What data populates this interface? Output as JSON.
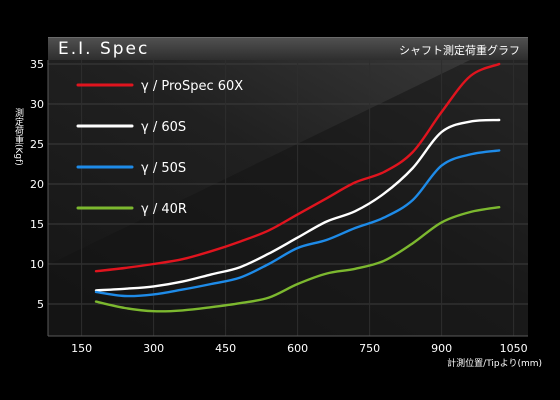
{
  "header": {
    "title": "E.I. Spec",
    "subtitle": "シャフト測定荷重グラフ"
  },
  "chart_data": {
    "type": "line",
    "title": "E.I. Spec",
    "subtitle": "シャフト測定荷重グラフ",
    "xlabel": "計測位置/Tipより(mm)",
    "ylabel": "測定荷重(Kgf)",
    "xlim": [
      80,
      1080
    ],
    "ylim": [
      1,
      35.5
    ],
    "xticks": [
      150,
      300,
      450,
      600,
      750,
      900,
      1050
    ],
    "yticks": [
      5,
      10,
      15,
      20,
      25,
      30,
      35
    ],
    "grid": true,
    "legend_position": "top-left",
    "x": [
      180,
      240,
      300,
      360,
      420,
      480,
      540,
      600,
      660,
      720,
      780,
      840,
      900,
      960,
      1020
    ],
    "series": [
      {
        "name": "γ / ProSpec 60X",
        "color": "#e0141e",
        "values": [
          9.1,
          9.5,
          10.0,
          10.6,
          11.6,
          12.8,
          14.2,
          16.2,
          18.2,
          20.2,
          21.5,
          24.0,
          29.0,
          33.5,
          35.0
        ]
      },
      {
        "name": "γ / 60S",
        "color": "#ffffff",
        "values": [
          6.7,
          6.9,
          7.2,
          7.8,
          8.7,
          9.6,
          11.3,
          13.3,
          15.3,
          16.6,
          18.8,
          22.0,
          26.5,
          27.8,
          28.0
        ]
      },
      {
        "name": "γ / 50S",
        "color": "#1e8be8",
        "values": [
          6.5,
          6.0,
          6.2,
          6.8,
          7.5,
          8.3,
          10.0,
          12.0,
          13.0,
          14.5,
          15.8,
          18.0,
          22.3,
          23.7,
          24.2
        ]
      },
      {
        "name": "γ / 40R",
        "color": "#7cb82f",
        "values": [
          5.3,
          4.5,
          4.1,
          4.2,
          4.6,
          5.1,
          5.8,
          7.5,
          8.8,
          9.4,
          10.4,
          12.6,
          15.2,
          16.5,
          17.1
        ]
      }
    ]
  }
}
